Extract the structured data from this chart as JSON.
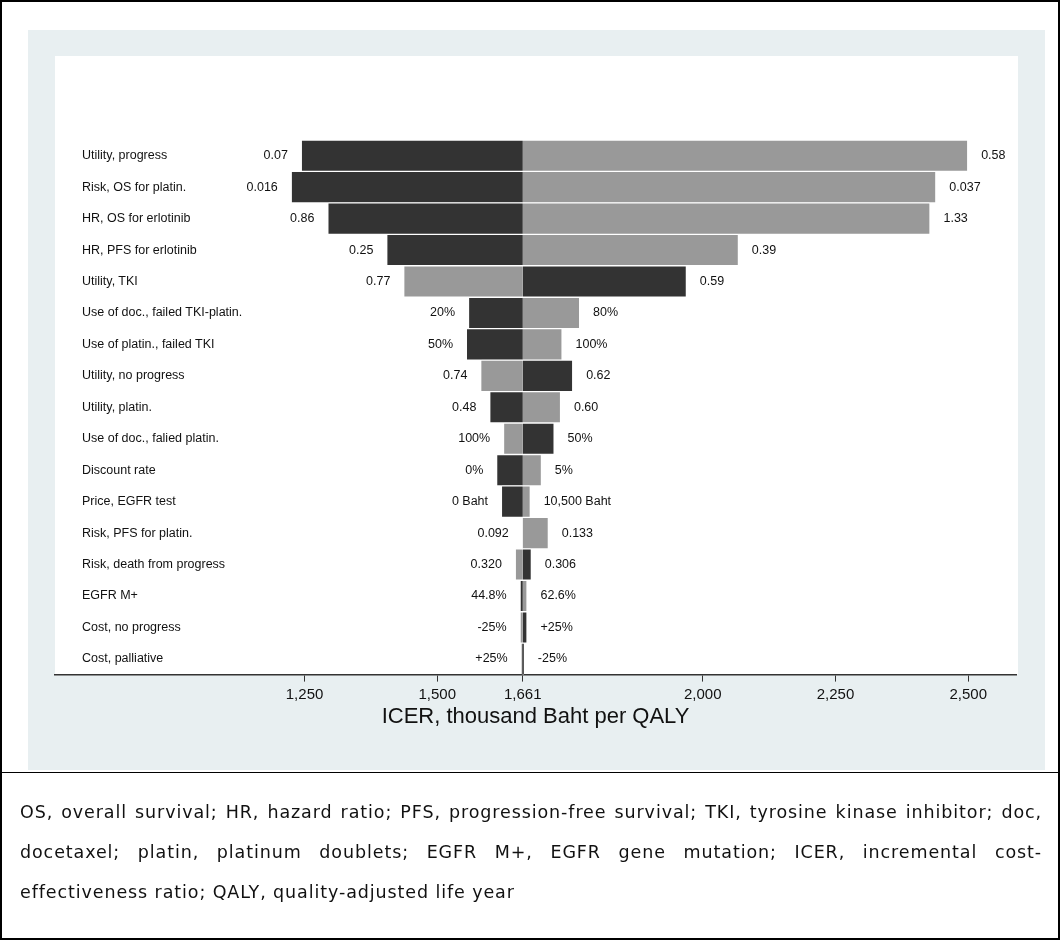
{
  "chart_data": {
    "type": "bar",
    "orientation": "horizontal",
    "xlabel": "ICER, thousand Baht per QALY",
    "categories": [
      "Utility, progress",
      "Risk, OS for platin.",
      "HR, OS for erlotinib",
      "HR, PFS for erlotinib",
      "Utility, TKI",
      "Use of doc., failed TKI-platin.",
      "Use of platin., failed TKI",
      "Utility, no progress",
      "Utility, platin.",
      "Use of doc., falied platin.",
      "Discount rate",
      "Price, EGFR test",
      "Risk, PFS for platin.",
      "Risk, death from progress",
      "EGFR M+",
      "Cost, no progress",
      "Cost, palliative"
    ],
    "series": [
      {
        "base": [
          1661,
          1661,
          1661,
          1661,
          1661,
          1661,
          1661,
          1661,
          1661,
          1661,
          1661,
          1661,
          1661,
          1661,
          1661,
          1661,
          1661
        ],
        "values": [
          -416,
          -435,
          -366,
          -255,
          -223,
          -101,
          -105,
          -78,
          -61,
          -35,
          -48,
          -39,
          0,
          -13,
          -4,
          -4,
          -2
        ],
        "colors": [
          "#333333",
          "#333333",
          "#333333",
          "#333333",
          "#999999",
          "#333333",
          "#333333",
          "#999999",
          "#333333",
          "#999999",
          "#333333",
          "#333333",
          "#999999",
          "#999999",
          "#333333",
          "#999999",
          "#333333"
        ]
      },
      {
        "base": [
          1661,
          1661,
          1661,
          1661,
          1661,
          1661,
          1661,
          1661,
          1661,
          1661,
          1661,
          1661,
          1661,
          1661,
          1661,
          1661,
          1661
        ],
        "values": [
          837,
          777,
          766,
          405,
          307,
          106,
          73,
          93,
          70,
          58,
          34,
          13,
          47,
          15,
          7,
          7,
          2
        ],
        "colors": [
          "#999999",
          "#999999",
          "#999999",
          "#999999",
          "#333333",
          "#999999",
          "#999999",
          "#333333",
          "#999999",
          "#333333",
          "#999999",
          "#999999",
          "#999999",
          "#333333",
          "#999999",
          "#333333",
          "#333333"
        ]
      }
    ],
    "xlim": [
      780,
      2590
    ],
    "xticks": [
      {
        "value": 1250,
        "label": "1,250"
      },
      {
        "value": 1500,
        "label": "1,500"
      },
      {
        "value": 1661,
        "label": "1,661"
      },
      {
        "value": 2000,
        "label": "2,000"
      },
      {
        "value": 2250,
        "label": "2,250"
      },
      {
        "value": 2500,
        "label": "2,500"
      }
    ],
    "grid": false,
    "legend": false,
    "annotations": [
      {
        "text": "0.07",
        "x": 1245,
        "y": "Utility, progress"
      },
      {
        "text": "0.58",
        "x": 2498,
        "y": "Utility, progress"
      },
      {
        "text": "0.016",
        "x": 1226,
        "y": "Risk, OS for platin."
      },
      {
        "text": "0.037",
        "x": 2438,
        "y": "Risk, OS for platin."
      },
      {
        "text": "0.86",
        "x": 1295,
        "y": "HR, OS for erlotinib"
      },
      {
        "text": "1.33",
        "x": 2427,
        "y": "HR, OS for erlotinib"
      },
      {
        "text": "0.25",
        "x": 1406,
        "y": "HR, PFS for erlotinib"
      },
      {
        "text": "0.39",
        "x": 2066,
        "y": "HR, PFS for erlotinib"
      },
      {
        "text": "0.77",
        "x": 1438,
        "y": "Utility, TKI"
      },
      {
        "text": "0.59",
        "x": 1968,
        "y": "Utility, TKI"
      },
      {
        "text": "20%",
        "x": 1560,
        "y": "Use of doc., failed TKI-platin."
      },
      {
        "text": "80%",
        "x": 1767,
        "y": "Use of doc., failed TKI-platin."
      },
      {
        "text": "50%",
        "x": 1556,
        "y": "Use of platin., failed TKI"
      },
      {
        "text": "100%",
        "x": 1734,
        "y": "Use of platin., failed TKI"
      },
      {
        "text": "0.74",
        "x": 1583,
        "y": "Utility, no progress"
      },
      {
        "text": "0.62",
        "x": 1754,
        "y": "Utility, no progress"
      },
      {
        "text": "0.48",
        "x": 1600,
        "y": "Utility, platin."
      },
      {
        "text": "0.60",
        "x": 1731,
        "y": "Utility, platin."
      },
      {
        "text": "100%",
        "x": 1626,
        "y": "Use of doc., falied platin."
      },
      {
        "text": "50%",
        "x": 1719,
        "y": "Use of doc., falied platin."
      },
      {
        "text": "0%",
        "x": 1613,
        "y": "Discount rate"
      },
      {
        "text": "5%",
        "x": 1695,
        "y": "Discount rate"
      },
      {
        "text": "0 Baht",
        "x": 1622,
        "y": "Price, EGFR test"
      },
      {
        "text": "10,500 Baht",
        "x": 1674,
        "y": "Price, EGFR test"
      },
      {
        "text": "0.092",
        "x": 1661,
        "y": "Risk, PFS for platin."
      },
      {
        "text": "0.133",
        "x": 1708,
        "y": "Risk, PFS for platin."
      },
      {
        "text": "0.320",
        "x": 1648,
        "y": "Risk, death from progress"
      },
      {
        "text": "0.306",
        "x": 1676,
        "y": "Risk, death from progress"
      },
      {
        "text": "44.8%",
        "x": 1657,
        "y": "EGFR M+"
      },
      {
        "text": "62.6%",
        "x": 1668,
        "y": "EGFR M+"
      },
      {
        "text": "-25%",
        "x": 1657,
        "y": "Cost, no progress"
      },
      {
        "text": "+25%",
        "x": 1668,
        "y": "Cost, no progress"
      },
      {
        "text": "+25%",
        "x": 1659,
        "y": "Cost, palliative"
      },
      {
        "text": "-25%",
        "x": 1663,
        "y": "Cost, palliative"
      },
      "OS, overall survival; HR, hazard ratio; PFS, progression-free survival; TKI, tyrosine kinase inhibitor; doc, docetaxel; platin, platinum doublets; EGFR M+, EGFR gene mutation; ICER, incremental cost-effectiveness ratio; QALY, quality-adjusted life year"
    ]
  }
}
